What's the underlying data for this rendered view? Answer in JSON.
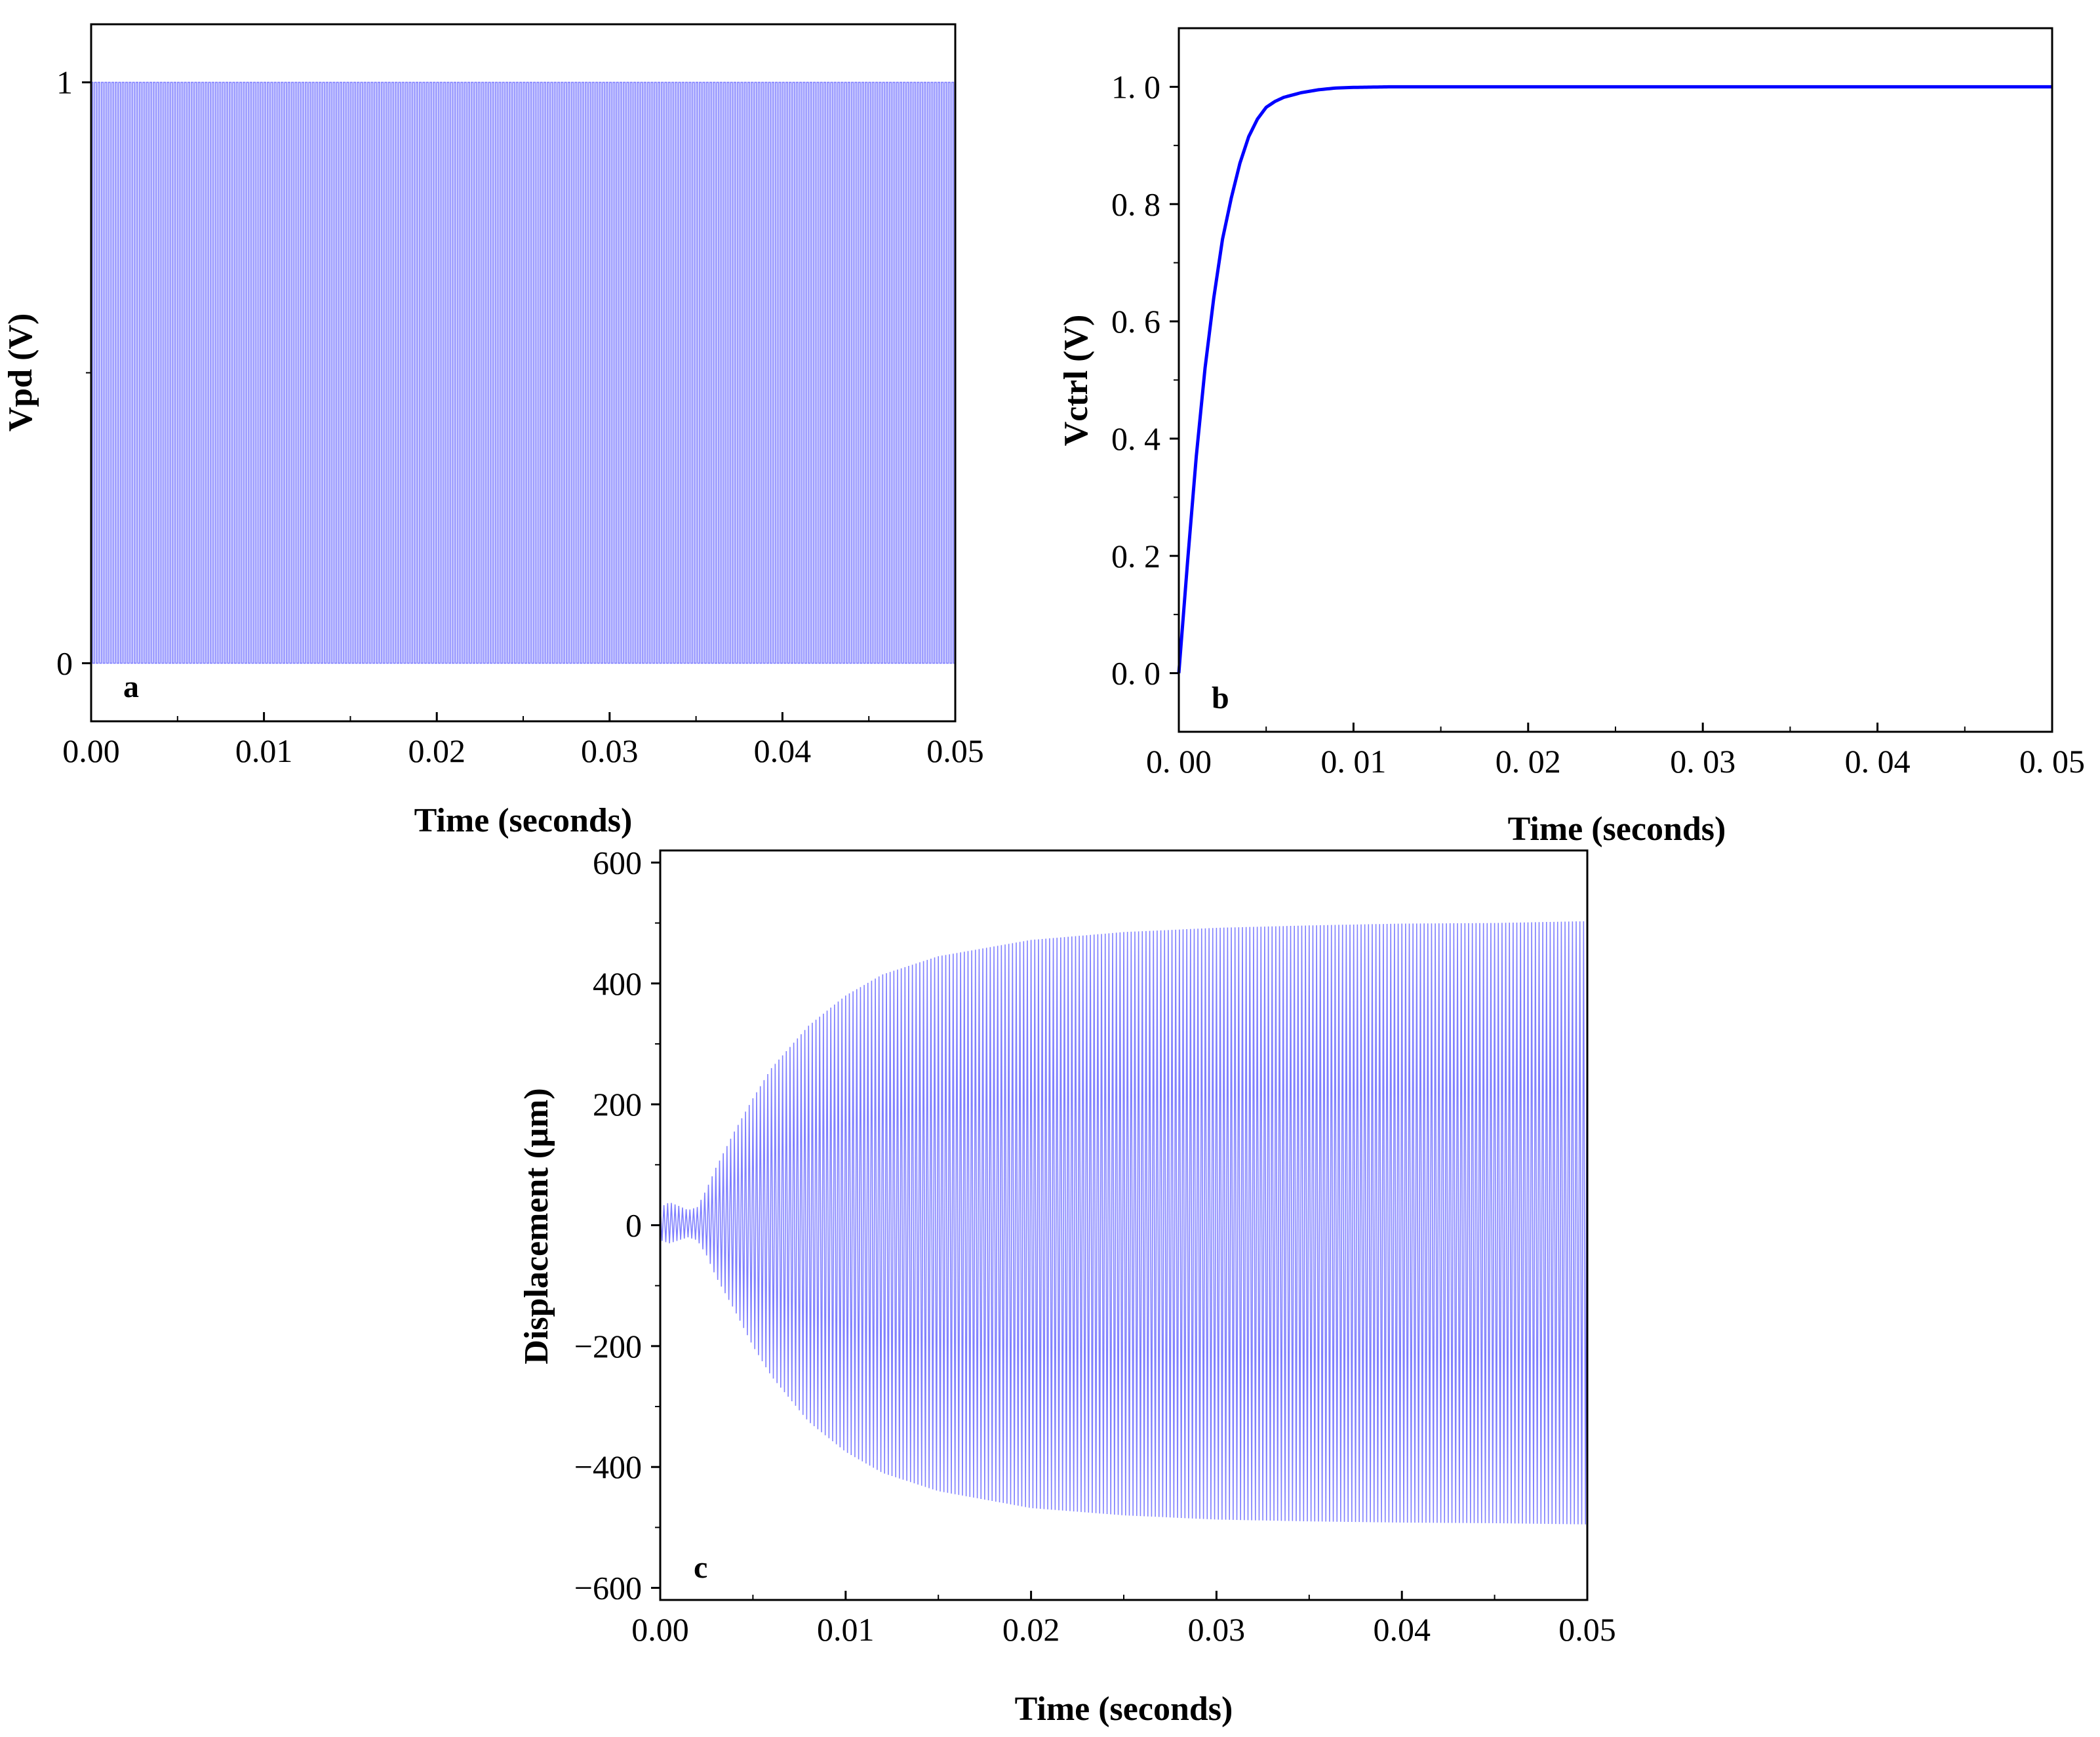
{
  "chart_data": [
    {
      "id": "a",
      "type": "line",
      "panel_label": "a",
      "xlabel": "Time (seconds)",
      "ylabel": "Vpd (V)",
      "xlim": [
        0,
        0.05
      ],
      "ylim": [
        -0.1,
        1.1
      ],
      "x_ticks": [
        0,
        0.01,
        0.02,
        0.03,
        0.04,
        0.05
      ],
      "x_tick_labels": [
        "0.00",
        "0.01",
        "0.02",
        "0.03",
        "0.04",
        "0.05"
      ],
      "y_ticks": [
        0,
        1
      ],
      "y_tick_labels": [
        "0",
        "1"
      ],
      "signal": {
        "kind": "square_wave",
        "low": 0,
        "high": 1,
        "t_start": 0,
        "t_end": 0.05,
        "cycles_in_window": 250
      },
      "series_color": "#8080ff",
      "grid": false
    },
    {
      "id": "b",
      "type": "line",
      "panel_label": "b",
      "xlabel": "Time (seconds)",
      "ylabel": "Vctrl (V)",
      "xlim": [
        0,
        0.05
      ],
      "ylim": [
        -0.1,
        1.1
      ],
      "x_ticks": [
        0,
        0.01,
        0.02,
        0.03,
        0.04,
        0.05
      ],
      "x_tick_labels": [
        "0. 00",
        "0. 01",
        "0. 02",
        "0. 03",
        "0. 04",
        "0. 05"
      ],
      "y_ticks": [
        0,
        0.2,
        0.4,
        0.6,
        0.8,
        1.0
      ],
      "y_tick_labels": [
        "0. 0",
        "0. 2",
        "0. 4",
        "0. 6",
        "0. 8",
        "1. 0"
      ],
      "series": [
        {
          "x": [
            0,
            0.0005,
            0.001,
            0.0015,
            0.002,
            0.0025,
            0.003,
            0.0035,
            0.004,
            0.0045,
            0.005,
            0.0055,
            0.006,
            0.007,
            0.008,
            0.009,
            0.01,
            0.012,
            0.015,
            0.02,
            0.03,
            0.04,
            0.05
          ],
          "y": [
            0,
            0.19,
            0.37,
            0.52,
            0.64,
            0.74,
            0.81,
            0.87,
            0.915,
            0.945,
            0.965,
            0.975,
            0.982,
            0.99,
            0.995,
            0.998,
            0.999,
            1.0,
            1.0,
            1.0,
            1.0,
            1.0,
            1.0
          ]
        }
      ],
      "series_color": "#0000ff",
      "grid": false
    },
    {
      "id": "c",
      "type": "line",
      "panel_label": "c",
      "xlabel": "Time (seconds)",
      "ylabel": "Displacement (µm)",
      "xlim": [
        0,
        0.05
      ],
      "ylim": [
        -620,
        620
      ],
      "x_ticks": [
        0,
        0.01,
        0.02,
        0.03,
        0.04,
        0.05
      ],
      "x_tick_labels": [
        "0.00",
        "0.01",
        "0.02",
        "0.03",
        "0.04",
        "0.05"
      ],
      "y_ticks": [
        -600,
        -400,
        -200,
        0,
        200,
        400,
        600
      ],
      "y_tick_labels": [
        "−600",
        "−400",
        "−200",
        "0",
        "200",
        "400",
        "600"
      ],
      "envelope": {
        "t": [
          0,
          0.0005,
          0.001,
          0.0015,
          0.002,
          0.0025,
          0.003,
          0.004,
          0.005,
          0.006,
          0.008,
          0.01,
          0.012,
          0.015,
          0.02,
          0.025,
          0.03,
          0.035,
          0.04,
          0.045,
          0.05
        ],
        "upper": [
          30,
          38,
          32,
          25,
          30,
          60,
          95,
          155,
          210,
          260,
          330,
          380,
          415,
          445,
          472,
          485,
          492,
          496,
          499,
          500,
          503
        ],
        "lower": [
          -25,
          -30,
          -25,
          -20,
          -25,
          -50,
          -85,
          -140,
          -200,
          -250,
          -325,
          -375,
          -410,
          -440,
          -468,
          -480,
          -487,
          -490,
          -492,
          -493,
          -495
        ]
      },
      "cycles_in_window": 250,
      "series_color": "#8080ff",
      "grid": false
    }
  ]
}
